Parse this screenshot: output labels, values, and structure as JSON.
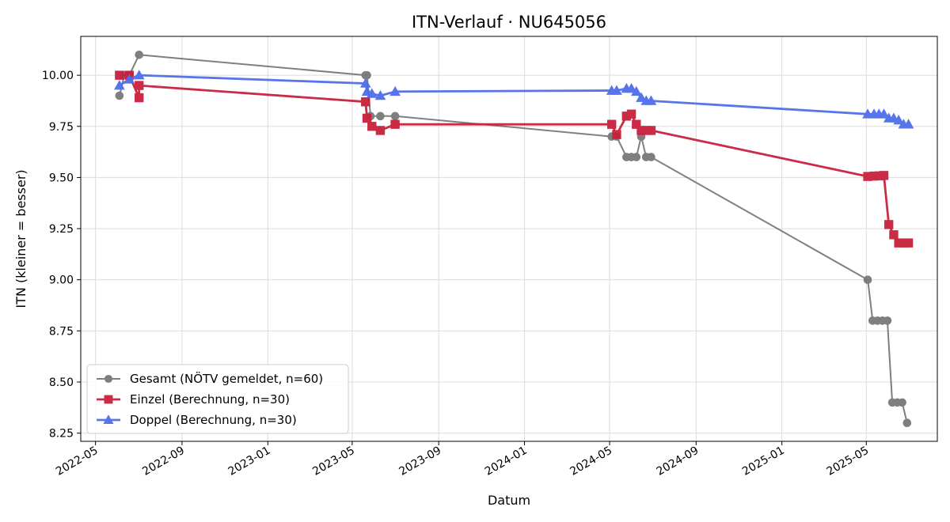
{
  "chart_data": {
    "type": "line",
    "title": "ITN-Verlauf · NU645056",
    "xlabel": "Datum",
    "ylabel": "ITN  (kleiner = besser)",
    "ylim": [
      8.21,
      10.19
    ],
    "xlim": [
      "2022-04-10",
      "2025-08-10"
    ],
    "grid": true,
    "legend_position": "lower-left",
    "x_ticks": [
      "2022-05",
      "2022-09",
      "2023-01",
      "2023-05",
      "2023-09",
      "2024-01",
      "2024-05",
      "2024-09",
      "2025-01",
      "2025-05"
    ],
    "y_ticks": [
      "8.25",
      "8.50",
      "8.75",
      "9.00",
      "9.25",
      "9.50",
      "9.75",
      "10.00"
    ],
    "series": [
      {
        "name": "Gesamt (NÖTV gemeldet, n=60)",
        "color": "#555555",
        "marker": "circle",
        "points": [
          [
            "2022-06-04",
            9.9
          ],
          [
            "2022-06-11",
            10.0
          ],
          [
            "2022-06-18",
            10.0
          ],
          [
            "2022-07-02",
            10.1
          ],
          [
            "2023-05-20",
            10.0
          ],
          [
            "2023-05-22",
            10.0
          ],
          [
            "2023-05-27",
            9.8
          ],
          [
            "2023-06-10",
            9.8
          ],
          [
            "2023-07-01",
            9.8
          ],
          [
            "2024-05-04",
            9.7
          ],
          [
            "2024-05-11",
            9.7
          ],
          [
            "2024-05-25",
            9.6
          ],
          [
            "2024-06-01",
            9.6
          ],
          [
            "2024-06-08",
            9.6
          ],
          [
            "2024-06-15",
            9.7
          ],
          [
            "2024-06-22",
            9.6
          ],
          [
            "2024-06-29",
            9.6
          ],
          [
            "2025-05-03",
            9.0
          ],
          [
            "2025-05-10",
            8.8
          ],
          [
            "2025-05-17",
            8.8
          ],
          [
            "2025-05-24",
            8.8
          ],
          [
            "2025-05-31",
            8.8
          ],
          [
            "2025-06-07",
            8.4
          ],
          [
            "2025-06-14",
            8.4
          ],
          [
            "2025-06-21",
            8.4
          ],
          [
            "2025-06-28",
            8.3
          ]
        ]
      },
      {
        "name": "Einzel (Berechnung, n=30)",
        "color": "#c8203c",
        "marker": "square",
        "points": [
          [
            "2022-06-04",
            10.0
          ],
          [
            "2022-06-18",
            10.0
          ],
          [
            "2022-07-02",
            9.89
          ],
          [
            "2022-07-02",
            9.95
          ],
          [
            "2023-05-20",
            9.87
          ],
          [
            "2023-05-22",
            9.79
          ],
          [
            "2023-05-29",
            9.75
          ],
          [
            "2023-06-10",
            9.73
          ],
          [
            "2023-07-01",
            9.76
          ],
          [
            "2024-05-04",
            9.76
          ],
          [
            "2024-05-11",
            9.71
          ],
          [
            "2024-05-25",
            9.8
          ],
          [
            "2024-06-01",
            9.81
          ],
          [
            "2024-06-08",
            9.76
          ],
          [
            "2024-06-15",
            9.73
          ],
          [
            "2024-06-22",
            9.73
          ],
          [
            "2024-06-29",
            9.73
          ],
          [
            "2025-05-03",
            9.505
          ],
          [
            "2025-05-12",
            9.507
          ],
          [
            "2025-05-19",
            9.508
          ],
          [
            "2025-05-26",
            9.51
          ],
          [
            "2025-06-02",
            9.27
          ],
          [
            "2025-06-09",
            9.22
          ],
          [
            "2025-06-16",
            9.18
          ],
          [
            "2025-06-23",
            9.18
          ],
          [
            "2025-06-30",
            9.18
          ]
        ]
      },
      {
        "name": "Doppel (Berechnung, n=30)",
        "color": "#4f6ee8",
        "marker": "triangle",
        "points": [
          [
            "2022-06-04",
            9.95
          ],
          [
            "2022-06-18",
            9.98
          ],
          [
            "2022-07-02",
            10.0
          ],
          [
            "2023-05-20",
            9.96
          ],
          [
            "2023-05-22",
            9.92
          ],
          [
            "2023-05-29",
            9.91
          ],
          [
            "2023-06-10",
            9.9
          ],
          [
            "2023-07-01",
            9.92
          ],
          [
            "2024-05-04",
            9.925
          ],
          [
            "2024-05-11",
            9.925
          ],
          [
            "2024-05-25",
            9.935
          ],
          [
            "2024-06-01",
            9.935
          ],
          [
            "2024-06-08",
            9.92
          ],
          [
            "2024-06-15",
            9.89
          ],
          [
            "2024-06-22",
            9.875
          ],
          [
            "2024-06-29",
            9.875
          ],
          [
            "2025-05-03",
            9.81
          ],
          [
            "2025-05-12",
            9.81
          ],
          [
            "2025-05-19",
            9.81
          ],
          [
            "2025-05-26",
            9.81
          ],
          [
            "2025-06-02",
            9.79
          ],
          [
            "2025-06-09",
            9.79
          ],
          [
            "2025-06-16",
            9.78
          ],
          [
            "2025-06-23",
            9.76
          ],
          [
            "2025-06-30",
            9.76
          ]
        ]
      }
    ]
  }
}
